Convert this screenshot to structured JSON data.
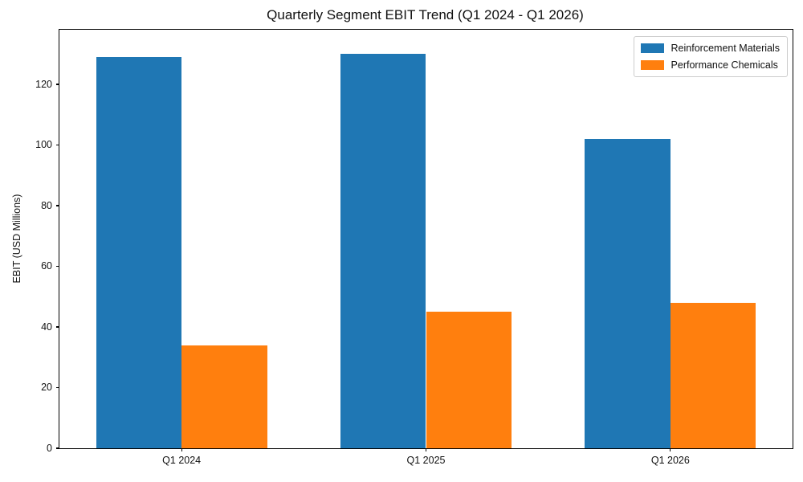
{
  "chart_data": {
    "type": "bar",
    "title": "Quarterly Segment EBIT Trend (Q1 2024 - Q1 2026)",
    "xlabel": "",
    "ylabel": "EBIT (USD Millions)",
    "categories": [
      "Q1 2024",
      "Q1 2025",
      "Q1 2026"
    ],
    "series": [
      {
        "name": "Reinforcement Materials",
        "color": "#1f77b4",
        "values": [
          129,
          130,
          102
        ]
      },
      {
        "name": "Performance Chemicals",
        "color": "#ff7f0e",
        "values": [
          34,
          45,
          48
        ]
      }
    ],
    "yticks": [
      0,
      20,
      40,
      60,
      80,
      100,
      120
    ],
    "ylim": [
      0,
      138
    ],
    "bar_width_fraction": 0.35,
    "grid": "off",
    "legend_position": "upper right"
  }
}
